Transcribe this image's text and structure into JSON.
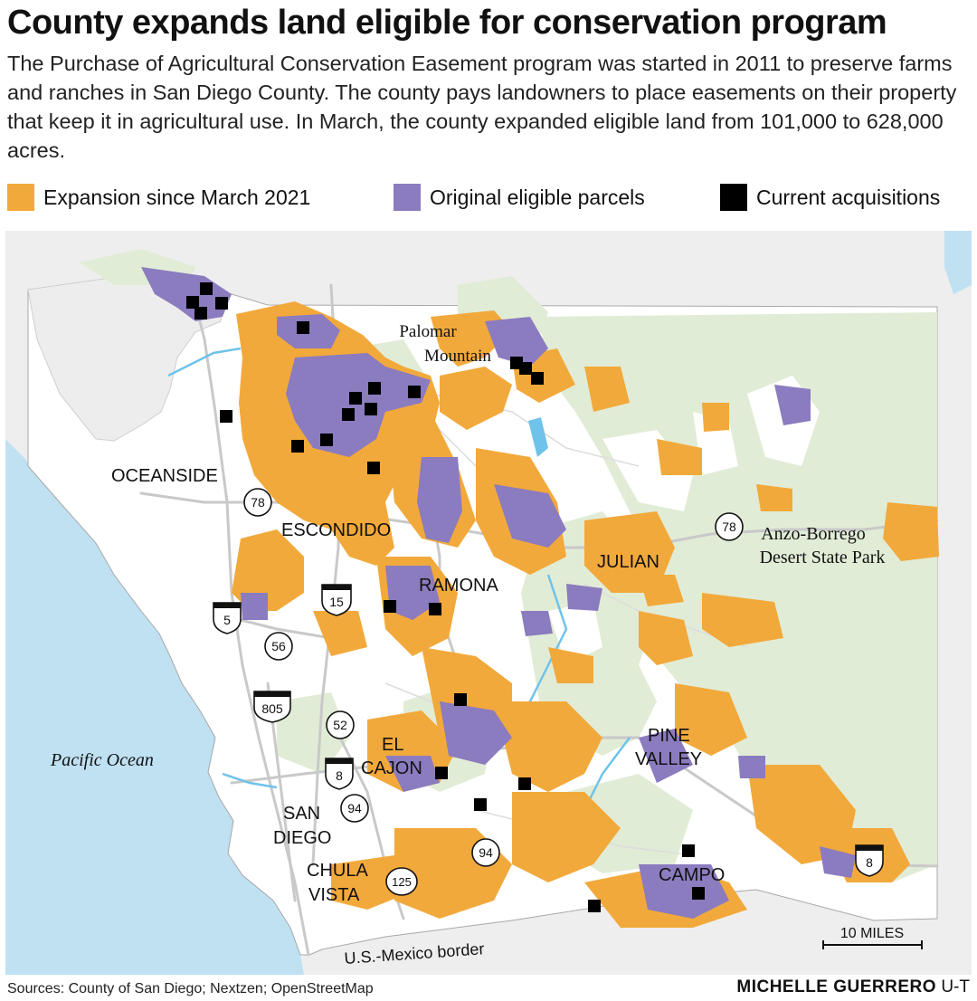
{
  "title": "County expands land eligible for conservation program",
  "subtitle": "The Purchase of Agricultural Conservation Easement program was started in 2011 to preserve farms and ranches in San Diego County. The county pays landowners to place easements on their property that keep it in agricultural use. In March, the county expanded eligible land from 101,000 to 628,000 acres.",
  "legend": [
    {
      "label": "Expansion since March 2021",
      "color": "#f2a93b"
    },
    {
      "label": "Original eligible parcels",
      "color": "#8b7bbf"
    },
    {
      "label": "Current acquisitions",
      "color": "#000000"
    }
  ],
  "colors": {
    "ocean": "#bfe1f2",
    "land": "#ffffff",
    "outside": "#eeeeee",
    "parks": "#e1ecd6",
    "roads": "#c9c9c9",
    "rivers": "#6fc3ea",
    "expansion": "#f2a93b",
    "original": "#8b7bbf",
    "acquisition": "#000000"
  },
  "map_labels": {
    "pacific": "Pacific Ocean",
    "palomar": [
      "Palomar",
      "Mountain"
    ],
    "anzo": [
      "Anzo-Borrego",
      "Desert State Park"
    ],
    "oceanside": "OCEANSIDE",
    "escondido": "ESCONDIDO",
    "ramona": "RAMONA",
    "julian": "JULIAN",
    "el_cajon": [
      "EL",
      "CAJON"
    ],
    "pine_valley": [
      "PINE",
      "VALLEY"
    ],
    "san_diego": [
      "SAN",
      "DIEGO"
    ],
    "chula_vista": [
      "CHULA",
      "VISTA"
    ],
    "campo": "CAMPO",
    "border": "U.S.-Mexico border",
    "scale": "10 MILES"
  },
  "highways": {
    "interstates": [
      "5",
      "15",
      "805",
      "8",
      "8"
    ],
    "state_routes": [
      "78",
      "78",
      "56",
      "52",
      "94",
      "94",
      "125"
    ]
  },
  "footer": {
    "sources": "Sources: County of San Diego; Nextzen; OpenStreetMap",
    "byline": "MICHELLE GUERRERO",
    "outlet": "U-T"
  }
}
